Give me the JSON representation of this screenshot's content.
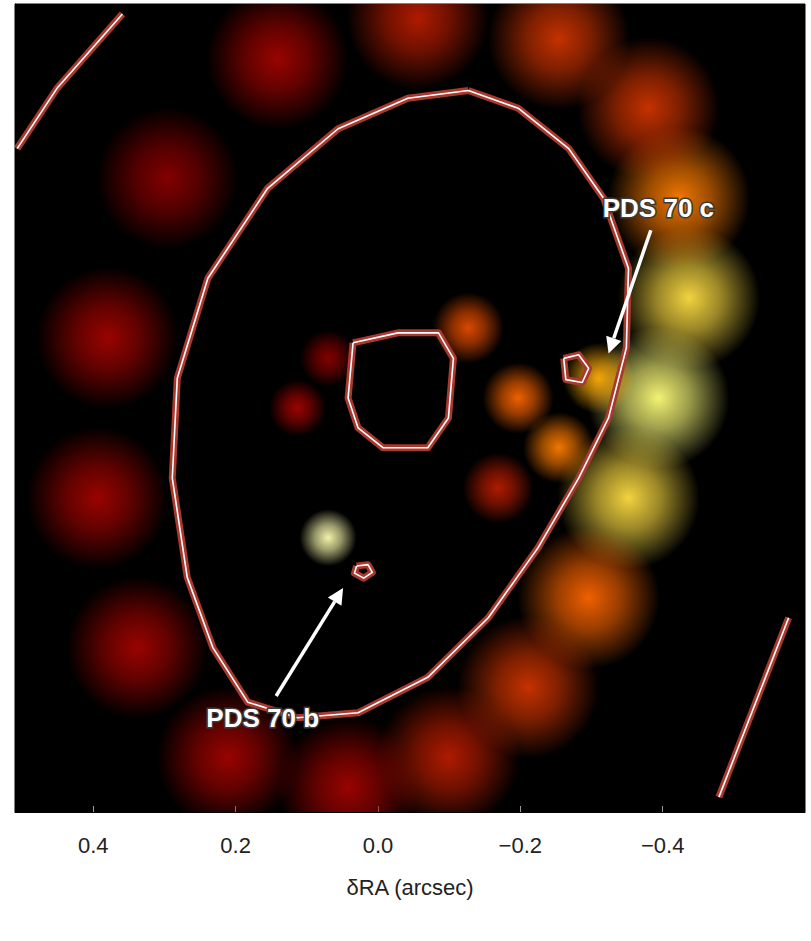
{
  "chart_data": {
    "type": "image",
    "xlabel": "δRA (arcsec)",
    "xlim": [
      0.51,
      -0.6
    ],
    "xticks": [
      {
        "value": 0.4,
        "label": "0.4"
      },
      {
        "value": 0.2,
        "label": "0.2"
      },
      {
        "value": 0,
        "label": "0.0"
      },
      {
        "value": -0.2,
        "label": "−0.2"
      },
      {
        "value": -0.4,
        "label": "−0.4"
      }
    ],
    "ylim": [
      -0.57,
      0.57
    ],
    "tick_labels": "x",
    "grid": false,
    "emission": [
      {
        "x": -0.437,
        "y": 0.155,
        "intensity": 0.8,
        "r": 0.1
      },
      {
        "x": -0.423,
        "y": 0.296,
        "intensity": 0.6,
        "r": 0.1
      },
      {
        "x": -0.38,
        "y": 0.423,
        "intensity": 0.45,
        "r": 0.1
      },
      {
        "x": -0.394,
        "y": 0.014,
        "intensity": 0.9,
        "r": 0.1
      },
      {
        "x": -0.352,
        "y": -0.127,
        "intensity": 0.8,
        "r": 0.1
      },
      {
        "x": -0.296,
        "y": -0.268,
        "intensity": 0.55,
        "r": 0.1
      },
      {
        "x": -0.211,
        "y": -0.394,
        "intensity": 0.45,
        "r": 0.1
      },
      {
        "x": -0.099,
        "y": -0.493,
        "intensity": 0.4,
        "r": 0.1
      },
      {
        "x": 0.042,
        "y": -0.535,
        "intensity": 0.35,
        "r": 0.1
      },
      {
        "x": 0.211,
        "y": -0.493,
        "intensity": 0.35,
        "r": 0.1
      },
      {
        "x": 0.338,
        "y": -0.338,
        "intensity": 0.35,
        "r": 0.1
      },
      {
        "x": 0.394,
        "y": -0.127,
        "intensity": 0.35,
        "r": 0.1
      },
      {
        "x": 0.38,
        "y": 0.099,
        "intensity": 0.35,
        "r": 0.1
      },
      {
        "x": 0.296,
        "y": 0.324,
        "intensity": 0.3,
        "r": 0.1
      },
      {
        "x": 0.141,
        "y": 0.493,
        "intensity": 0.35,
        "r": 0.1
      },
      {
        "x": -0.056,
        "y": 0.549,
        "intensity": 0.4,
        "r": 0.1
      },
      {
        "x": -0.254,
        "y": 0.521,
        "intensity": 0.45,
        "r": 0.1
      },
      {
        "x": -0.127,
        "y": 0.113,
        "intensity": 0.5,
        "r": 0.05
      },
      {
        "x": -0.197,
        "y": 0.014,
        "intensity": 0.55,
        "r": 0.05
      },
      {
        "x": -0.254,
        "y": -0.056,
        "intensity": 0.6,
        "r": 0.05
      },
      {
        "x": -0.31,
        "y": 0.042,
        "intensity": 0.7,
        "r": 0.05
      },
      {
        "x": 0.113,
        "y": 0.0,
        "intensity": 0.35,
        "r": 0.04
      },
      {
        "x": 0.07,
        "y": 0.07,
        "intensity": 0.3,
        "r": 0.04
      },
      {
        "x": -0.169,
        "y": -0.113,
        "intensity": 0.4,
        "r": 0.05
      },
      {
        "x": 0.07,
        "y": -0.183,
        "intensity": 1.0,
        "r": 0.04
      }
    ],
    "contours": [
      [
        [
          -0.127,
          0.448
        ],
        [
          -0.197,
          0.423
        ],
        [
          -0.268,
          0.366
        ],
        [
          -0.317,
          0.296
        ],
        [
          -0.352,
          0.197
        ],
        [
          -0.349,
          0.085
        ],
        [
          -0.324,
          -0.014
        ],
        [
          -0.282,
          -0.099
        ],
        [
          -0.225,
          -0.197
        ],
        [
          -0.155,
          -0.296
        ],
        [
          -0.07,
          -0.38
        ],
        [
          0.028,
          -0.43
        ],
        [
          0.113,
          -0.437
        ],
        [
          0.183,
          -0.415
        ],
        [
          0.232,
          -0.338
        ],
        [
          0.268,
          -0.239
        ],
        [
          0.289,
          -0.099
        ],
        [
          0.282,
          0.042
        ],
        [
          0.239,
          0.183
        ],
        [
          0.155,
          0.31
        ],
        [
          0.056,
          0.394
        ],
        [
          -0.042,
          0.437
        ],
        [
          -0.127,
          0.448
        ]
      ],
      [
        [
          0.035,
          0.092
        ],
        [
          -0.028,
          0.106
        ],
        [
          -0.085,
          0.106
        ],
        [
          -0.106,
          0.07
        ],
        [
          -0.099,
          -0.014
        ],
        [
          -0.07,
          -0.056
        ],
        [
          -0.007,
          -0.056
        ],
        [
          0.028,
          -0.028
        ],
        [
          0.042,
          0.014
        ],
        [
          0.035,
          0.092
        ]
      ],
      [
        [
          -0.261,
          0.07
        ],
        [
          -0.282,
          0.075
        ],
        [
          -0.296,
          0.056
        ],
        [
          -0.287,
          0.036
        ],
        [
          -0.264,
          0.04
        ],
        [
          -0.261,
          0.07
        ]
      ],
      [
        [
          0.03,
          -0.223
        ],
        [
          0.014,
          -0.221
        ],
        [
          0.008,
          -0.232
        ],
        [
          0.02,
          -0.24
        ],
        [
          0.033,
          -0.233
        ],
        [
          0.03,
          -0.223
        ]
      ],
      [
        [
          0.507,
          0.366
        ],
        [
          0.451,
          0.451
        ],
        [
          0.359,
          0.556
        ]
      ],
      [
        [
          -0.479,
          -0.549
        ],
        [
          -0.577,
          -0.296
        ]
      ]
    ],
    "annotations": [
      {
        "text": "PDS 70 c",
        "x": -0.394,
        "y": 0.282,
        "arrow_x": -0.324,
        "arrow_y": 0.077
      },
      {
        "text": "PDS 70 b",
        "x": 0.162,
        "y": -0.437,
        "arrow_x": 0.049,
        "arrow_y": -0.254
      }
    ]
  }
}
